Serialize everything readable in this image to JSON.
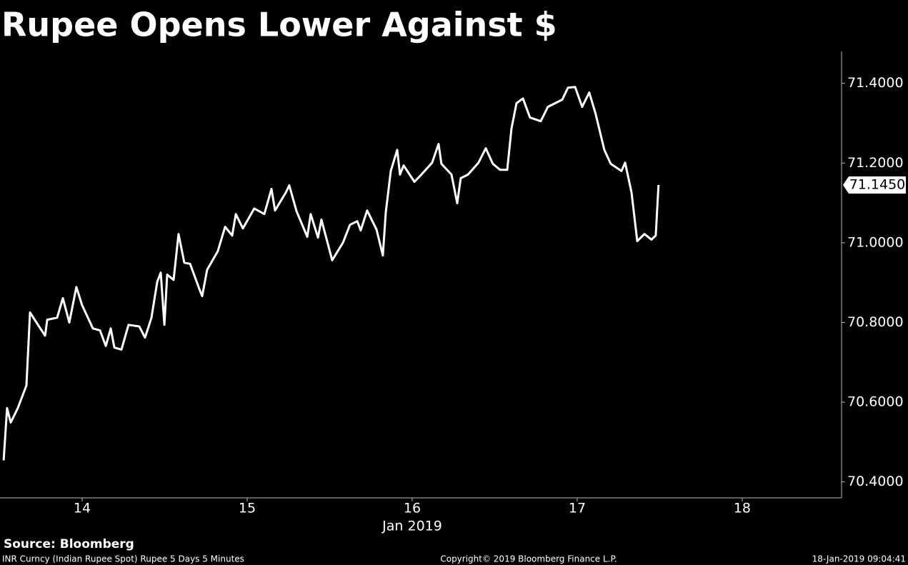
{
  "chart_data": {
    "type": "line",
    "title": "Rupee Opens Lower Against $",
    "x_label": "Jan 2019",
    "source": "Source: Bloomberg",
    "footer_left": "INR Curncy (Indian Rupee Spot) Rupee 5 Days 5 Minutes",
    "footer_center": "Copyright© 2019 Bloomberg Finance L.P.",
    "footer_right": "18-Jan-2019 09:04:41",
    "color": "#ffffff",
    "grid": false,
    "y_axis_side": "right",
    "xlim": [
      13.502,
      18.602
    ],
    "xticks": [
      14,
      15,
      16,
      17,
      18
    ],
    "ylim": [
      70.36,
      71.48
    ],
    "yticks": [
      {
        "value": 70.4,
        "label": "70.4000"
      },
      {
        "value": 70.6,
        "label": "70.6000"
      },
      {
        "value": 70.8,
        "label": "70.8000"
      },
      {
        "value": 71.0,
        "label": "71.0000"
      },
      {
        "value": 71.2,
        "label": "71.2000"
      },
      {
        "value": 71.4,
        "label": "71.4000"
      }
    ],
    "last_price": {
      "value": 71.145,
      "label": "71.1450"
    },
    "x": [
      13.524,
      13.545,
      13.567,
      13.61,
      13.662,
      13.684,
      13.74,
      13.775,
      13.788,
      13.848,
      13.883,
      13.922,
      13.965,
      14.0,
      14.065,
      14.108,
      14.143,
      14.173,
      14.195,
      14.238,
      14.281,
      14.346,
      14.381,
      14.42,
      14.455,
      14.476,
      14.498,
      14.515,
      14.554,
      14.584,
      14.619,
      14.654,
      14.71,
      14.727,
      14.757,
      14.822,
      14.866,
      14.909,
      14.931,
      14.974,
      15.043,
      15.104,
      15.147,
      15.169,
      15.234,
      15.255,
      15.299,
      15.364,
      15.385,
      15.429,
      15.45,
      15.515,
      15.58,
      15.623,
      15.667,
      15.688,
      15.727,
      15.784,
      15.822,
      15.84,
      15.87,
      15.909,
      15.926,
      15.948,
      16.013,
      16.056,
      16.121,
      16.16,
      16.177,
      16.238,
      16.273,
      16.294,
      16.338,
      16.402,
      16.446,
      16.489,
      16.532,
      16.576,
      16.602,
      16.632,
      16.671,
      16.714,
      16.779,
      16.822,
      16.909,
      16.944,
      16.987,
      17.03,
      17.073,
      17.112,
      17.164,
      17.203,
      17.268,
      17.29,
      17.329,
      17.364,
      17.407,
      17.45,
      17.476,
      17.493
    ],
    "values": [
      70.454,
      70.585,
      70.549,
      70.585,
      70.642,
      70.825,
      70.789,
      70.767,
      70.807,
      70.812,
      70.861,
      70.8,
      70.889,
      70.843,
      70.785,
      70.78,
      70.741,
      70.785,
      70.737,
      70.732,
      70.794,
      70.79,
      70.762,
      70.812,
      70.902,
      70.925,
      70.794,
      70.92,
      70.907,
      71.022,
      70.95,
      70.947,
      70.884,
      70.866,
      70.932,
      70.979,
      71.04,
      71.018,
      71.072,
      71.036,
      71.086,
      71.072,
      71.135,
      71.081,
      71.126,
      71.144,
      71.079,
      71.015,
      71.072,
      71.013,
      71.058,
      70.956,
      71.0,
      71.045,
      71.054,
      71.031,
      71.081,
      71.033,
      70.968,
      71.076,
      71.18,
      71.233,
      71.171,
      71.194,
      71.153,
      71.171,
      71.201,
      71.248,
      71.198,
      71.171,
      71.099,
      71.162,
      71.171,
      71.201,
      71.237,
      71.198,
      71.183,
      71.183,
      71.287,
      71.35,
      71.362,
      71.314,
      71.305,
      71.341,
      71.359,
      71.389,
      71.391,
      71.341,
      71.377,
      71.323,
      71.233,
      71.198,
      71.18,
      71.201,
      71.126,
      71.004,
      71.022,
      71.008,
      71.018,
      71.145
    ]
  }
}
